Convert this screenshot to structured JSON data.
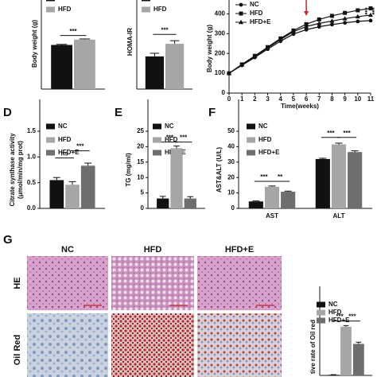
{
  "figure": {
    "panel_labels": [
      "D",
      "E",
      "F",
      "G"
    ],
    "column_headers": [
      "NC",
      "HFD",
      "HFD+E"
    ],
    "row_labels": [
      "HE",
      "Oil Red"
    ]
  },
  "chart_data": [
    {
      "type": "bar",
      "ylabel": [
        "Body weight (g)"
      ],
      "categories": [
        null
      ],
      "ylim": [
        0,
        500
      ],
      "series": [
        {
          "name": "NC",
          "color": "#111111",
          "values": [
            375
          ],
          "errors": [
            5
          ]
        },
        {
          "name": "HFD",
          "color": "#a6a6a6",
          "values": [
            420
          ],
          "errors": [
            6
          ]
        }
      ],
      "annotations": [
        "***"
      ]
    },
    {
      "type": "bar",
      "ylabel": [
        "HOMA-IR"
      ],
      "categories": [
        null
      ],
      "ylim": [
        0,
        1
      ],
      "series": [
        {
          "name": "NC",
          "color": "#111111",
          "values": [
            0.52
          ],
          "errors": [
            0.05
          ]
        },
        {
          "name": "HFD",
          "color": "#a6a6a6",
          "values": [
            0.72
          ],
          "errors": [
            0.05
          ]
        }
      ],
      "annotations": [
        "***"
      ]
    },
    {
      "type": "line",
      "ylabel": [
        "Body weight (g)"
      ],
      "xlabel": "Time(weeks)",
      "x": [
        0,
        1,
        2,
        3,
        4,
        5,
        6,
        7,
        8,
        9,
        10,
        11
      ],
      "xlim": [
        0,
        11
      ],
      "xticks": [
        0,
        1,
        2,
        3,
        4,
        5,
        6,
        7,
        8,
        9,
        10,
        11
      ],
      "ylim": [
        0,
        450
      ],
      "yticks": [
        0,
        100,
        200,
        300,
        400
      ],
      "series": [
        {
          "name": "NC",
          "color": "#111111",
          "marker": "circle",
          "values": [
            100,
            140,
            180,
            222,
            262,
            298,
            320,
            335,
            346,
            355,
            362,
            366
          ]
        },
        {
          "name": "HFD",
          "color": "#111111",
          "marker": "square",
          "values": [
            100,
            145,
            188,
            232,
            276,
            316,
            348,
            372,
            390,
            405,
            418,
            428
          ]
        },
        {
          "name": "HFD+E",
          "color": "#111111",
          "marker": "triangle",
          "values": [
            100,
            143,
            185,
            228,
            270,
            310,
            336,
            352,
            364,
            376,
            386,
            394
          ]
        }
      ],
      "annotations": [
        "***",
        "***"
      ]
    },
    {
      "type": "bar",
      "ylabel": [
        "Citrate synthase activity",
        "(μmol/min/mg prot)"
      ],
      "categories": [
        null
      ],
      "ylim": [
        0,
        1.5
      ],
      "yticks": [
        {
          "value": 0,
          "label": "0.0"
        },
        0.5,
        {
          "value": 1,
          "label": "1.0"
        },
        1.5
      ],
      "series": [
        {
          "name": "NC",
          "color": "#111111",
          "values": [
            0.55
          ],
          "errors": [
            0.05
          ]
        },
        {
          "name": "HFD",
          "color": "#a6a6a6",
          "values": [
            0.46
          ],
          "errors": [
            0.06
          ]
        },
        {
          "name": "HFD+E",
          "color": "#6e6e6e",
          "values": [
            0.83
          ],
          "errors": [
            0.05
          ]
        }
      ],
      "annotations": [
        "ns",
        "***"
      ]
    },
    {
      "type": "bar",
      "ylabel": [
        "TG (mg/ml)"
      ],
      "categories": [
        null
      ],
      "ylim": [
        0,
        25
      ],
      "yticks": [
        0,
        5,
        10,
        15,
        20,
        25
      ],
      "series": [
        {
          "name": "NC",
          "color": "#111111",
          "values": [
            3.2
          ],
          "errors": [
            0.7
          ]
        },
        {
          "name": "HFD",
          "color": "#a6a6a6",
          "values": [
            19.5
          ],
          "errors": [
            0.7
          ]
        },
        {
          "name": "HFD+E",
          "color": "#6e6e6e",
          "values": [
            3.2
          ],
          "errors": [
            0.6
          ]
        }
      ],
      "annotations": [
        "***",
        "***"
      ]
    },
    {
      "type": "bar",
      "ylabel": [
        "AST&ALT (U/L)"
      ],
      "categories": [
        "AST",
        "ALT"
      ],
      "ylim": [
        0,
        50
      ],
      "yticks": [
        0,
        10,
        20,
        30,
        40,
        50
      ],
      "series": [
        {
          "name": "NC",
          "color": "#111111",
          "values": [
            4.5,
            32
          ],
          "errors": [
            0.3,
            0.5
          ]
        },
        {
          "name": "HFD",
          "color": "#a6a6a6",
          "values": [
            14,
            41.5
          ],
          "errors": [
            0.5,
            0.8
          ]
        },
        {
          "name": "HFD+E",
          "color": "#6e6e6e",
          "values": [
            10.8,
            36.5
          ],
          "errors": [
            0.4,
            0.8
          ]
        }
      ],
      "annotations": [
        "***",
        "**",
        "***",
        "***"
      ]
    },
    {
      "type": "bar",
      "ylabel": [
        "tive rate of Oil red"
      ],
      "categories": [
        null
      ],
      "ylim": [
        0,
        100
      ],
      "series": [
        {
          "name": "NC",
          "color": "#111111",
          "values": [
            1
          ],
          "errors": [
            0.3
          ]
        },
        {
          "name": "HFD",
          "color": "#a6a6a6",
          "values": [
            85
          ],
          "errors": [
            2
          ]
        },
        {
          "name": "HFD+E",
          "color": "#6e6e6e",
          "values": [
            55
          ],
          "errors": [
            3
          ]
        }
      ],
      "annotations": [
        "***",
        "***"
      ]
    }
  ]
}
